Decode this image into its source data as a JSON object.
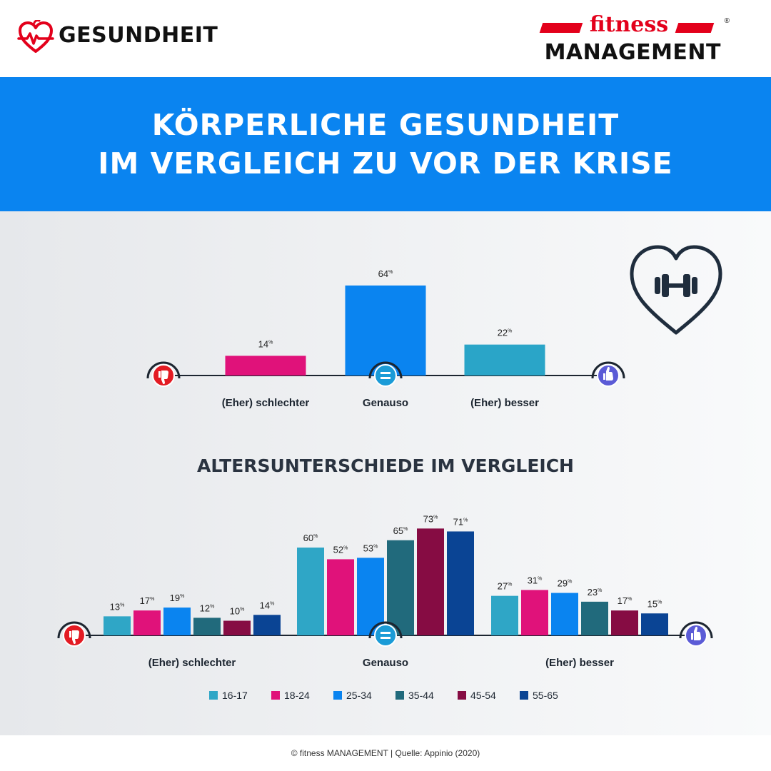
{
  "header": {
    "category": "GESUNDHEIT",
    "brand_top": "fitness",
    "brand_bottom": "MANAGEMENT",
    "brand_reg": "®"
  },
  "banner": {
    "line1": "KÖRPERLICHE GESUNDHEIT",
    "line2": "IM VERGLEICH ZU VOR DER KRISE"
  },
  "section2_title": "ALTERSUNTERSCHIEDE IM VERGLEICH",
  "footer": "© fitness MANAGEMENT | Quelle: Appinio (2020)",
  "colors": {
    "banner_blue": "#0a84f0",
    "thumb_down_red": "#e31b23",
    "equal_blue": "#1a9bd7",
    "thumb_up_indigo": "#5b5bd6",
    "brand_red": "#e3001b"
  },
  "chart_data": [
    {
      "type": "bar",
      "categories": [
        "(Eher) schlechter",
        "Genauso",
        "(Eher) besser"
      ],
      "values": [
        14,
        64,
        22
      ],
      "unit": "%",
      "colors": [
        "#e0127a",
        "#0a84f0",
        "#2aa5c8"
      ],
      "icons": [
        "thumbs-down-icon",
        "equals-icon",
        "thumbs-up-icon"
      ]
    },
    {
      "type": "bar",
      "title": "ALTERSUNTERSCHIEDE IM VERGLEICH",
      "categories": [
        "(Eher) schlechter",
        "Genauso",
        "(Eher) besser"
      ],
      "unit": "%",
      "legend_position": "bottom",
      "series": [
        {
          "name": "16-17",
          "color": "#2fa6c6",
          "values": [
            13,
            60,
            27
          ]
        },
        {
          "name": "18-24",
          "color": "#e0127a",
          "values": [
            17,
            52,
            31
          ]
        },
        {
          "name": "25-34",
          "color": "#0a84f0",
          "values": [
            19,
            53,
            29
          ]
        },
        {
          "name": "35-44",
          "color": "#216a7c",
          "values": [
            12,
            65,
            23
          ]
        },
        {
          "name": "45-54",
          "color": "#860c43",
          "values": [
            10,
            73,
            17
          ]
        },
        {
          "name": "55-65",
          "color": "#0a4494",
          "values": [
            14,
            71,
            15
          ]
        }
      ]
    }
  ]
}
